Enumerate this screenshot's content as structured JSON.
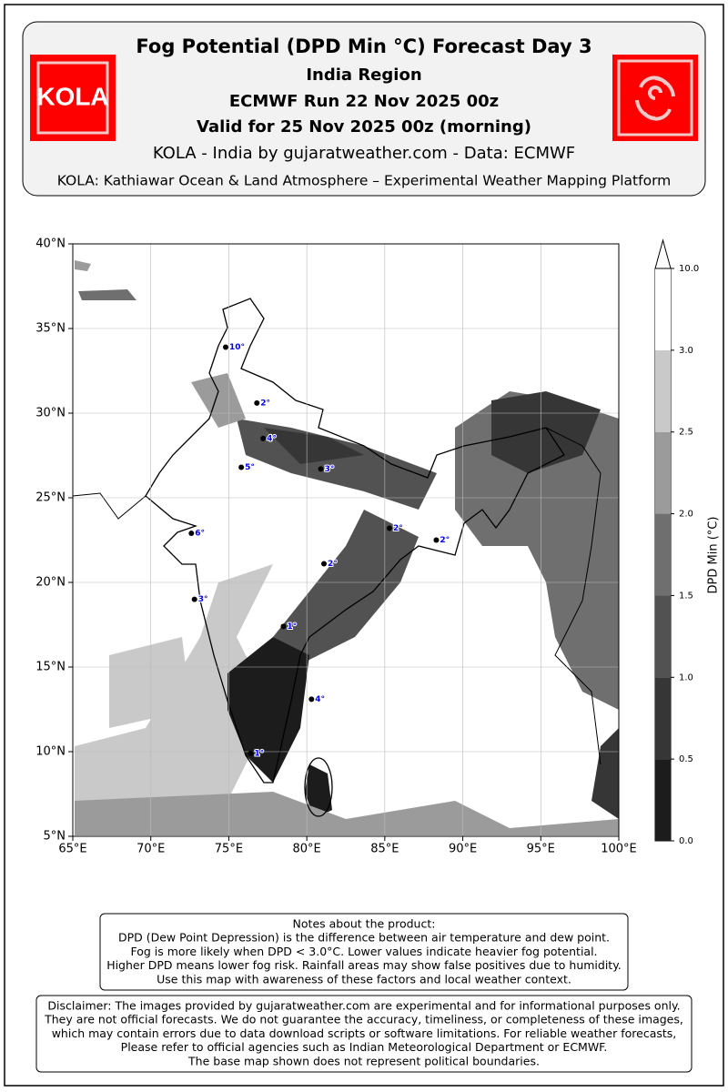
{
  "header": {
    "title": "Fog Potential (DPD Min °C) Forecast Day 3",
    "subtitle": "India Region",
    "run": "ECMWF Run 22 Nov 2025 00z",
    "valid": "Valid for 25 Nov 2025 00z (morning)",
    "credit": "KOLA - India by gujaratweather.com  -  Data: ECMWF",
    "platform": "KOLA: Kathiawar Ocean & Land Atmosphere – Experimental Weather Mapping Platform",
    "logo": "KOLA"
  },
  "map": {
    "xlim": [
      65,
      100
    ],
    "ylim": [
      5,
      40
    ],
    "xticks": [
      {
        "value": 65,
        "label": "65°E"
      },
      {
        "value": 70,
        "label": "70°E"
      },
      {
        "value": 75,
        "label": "75°E"
      },
      {
        "value": 80,
        "label": "80°E"
      },
      {
        "value": 85,
        "label": "85°E"
      },
      {
        "value": 90,
        "label": "90°E"
      },
      {
        "value": 95,
        "label": "95°E"
      },
      {
        "value": 100,
        "label": "100°E"
      }
    ],
    "yticks": [
      {
        "value": 5,
        "label": "5°N"
      },
      {
        "value": 10,
        "label": "10°N"
      },
      {
        "value": 15,
        "label": "15°N"
      },
      {
        "value": 20,
        "label": "20°N"
      },
      {
        "value": 25,
        "label": "25°N"
      },
      {
        "value": 30,
        "label": "30°N"
      },
      {
        "value": 35,
        "label": "35°N"
      },
      {
        "value": 40,
        "label": "40°N"
      }
    ],
    "grid": true,
    "stations": [
      {
        "lon": 74.8,
        "lat": 33.9,
        "label": "10°"
      },
      {
        "lon": 76.8,
        "lat": 30.6,
        "label": "2°"
      },
      {
        "lon": 77.2,
        "lat": 28.5,
        "label": "4°"
      },
      {
        "lon": 75.8,
        "lat": 26.8,
        "label": "5°"
      },
      {
        "lon": 80.9,
        "lat": 26.7,
        "label": "3°"
      },
      {
        "lon": 72.6,
        "lat": 22.9,
        "label": "6°"
      },
      {
        "lon": 85.3,
        "lat": 23.2,
        "label": "2°"
      },
      {
        "lon": 88.3,
        "lat": 22.5,
        "label": "2°"
      },
      {
        "lon": 81.1,
        "lat": 21.1,
        "label": "2°"
      },
      {
        "lon": 72.8,
        "lat": 19.0,
        "label": "3°"
      },
      {
        "lon": 78.5,
        "lat": 17.4,
        "label": "1°"
      },
      {
        "lon": 80.3,
        "lat": 13.1,
        "label": "4°"
      },
      {
        "lon": 76.4,
        "lat": 9.9,
        "label": "1°"
      }
    ]
  },
  "colorbar": {
    "label": "DPD Min (°C)",
    "colors": [
      "#1c1c1c",
      "#363636",
      "#525252",
      "#6f6f6f",
      "#9b9b9b",
      "#c9c9c9",
      "#ffffff"
    ],
    "ticks": [
      {
        "value": 0,
        "label": "0.0"
      },
      {
        "value": 0.5,
        "label": "0.5"
      },
      {
        "value": 1,
        "label": "1.0"
      },
      {
        "value": 1.5,
        "label": "1.5"
      },
      {
        "value": 2,
        "label": "2.0"
      },
      {
        "value": 2.5,
        "label": "2.5"
      },
      {
        "value": 3,
        "label": "3.0"
      },
      {
        "value": 10,
        "label": "10.0"
      }
    ]
  },
  "notes": {
    "lines": [
      "Notes about the product:",
      "DPD (Dew Point Depression) is the difference between air temperature and dew point.",
      "Fog is more likely when DPD < 3.0°C. Lower values indicate heavier fog potential.",
      "Higher DPD means lower fog risk. Rainfall areas may show false positives due to humidity.",
      "Use this map with awareness of these factors and local weather context."
    ]
  },
  "disclaimer": {
    "lines": [
      "Disclaimer: The images provided by gujaratweather.com are experimental and for informational purposes only.",
      "They are not official forecasts. We do not guarantee the accuracy, timeliness, or completeness of these images,",
      "which may contain errors due to data download scripts or software limitations. For reliable weather forecasts,",
      "Please refer to official agencies such as Indian Meteorological Department or ECMWF.",
      "The base map shown does not represent political boundaries."
    ]
  }
}
